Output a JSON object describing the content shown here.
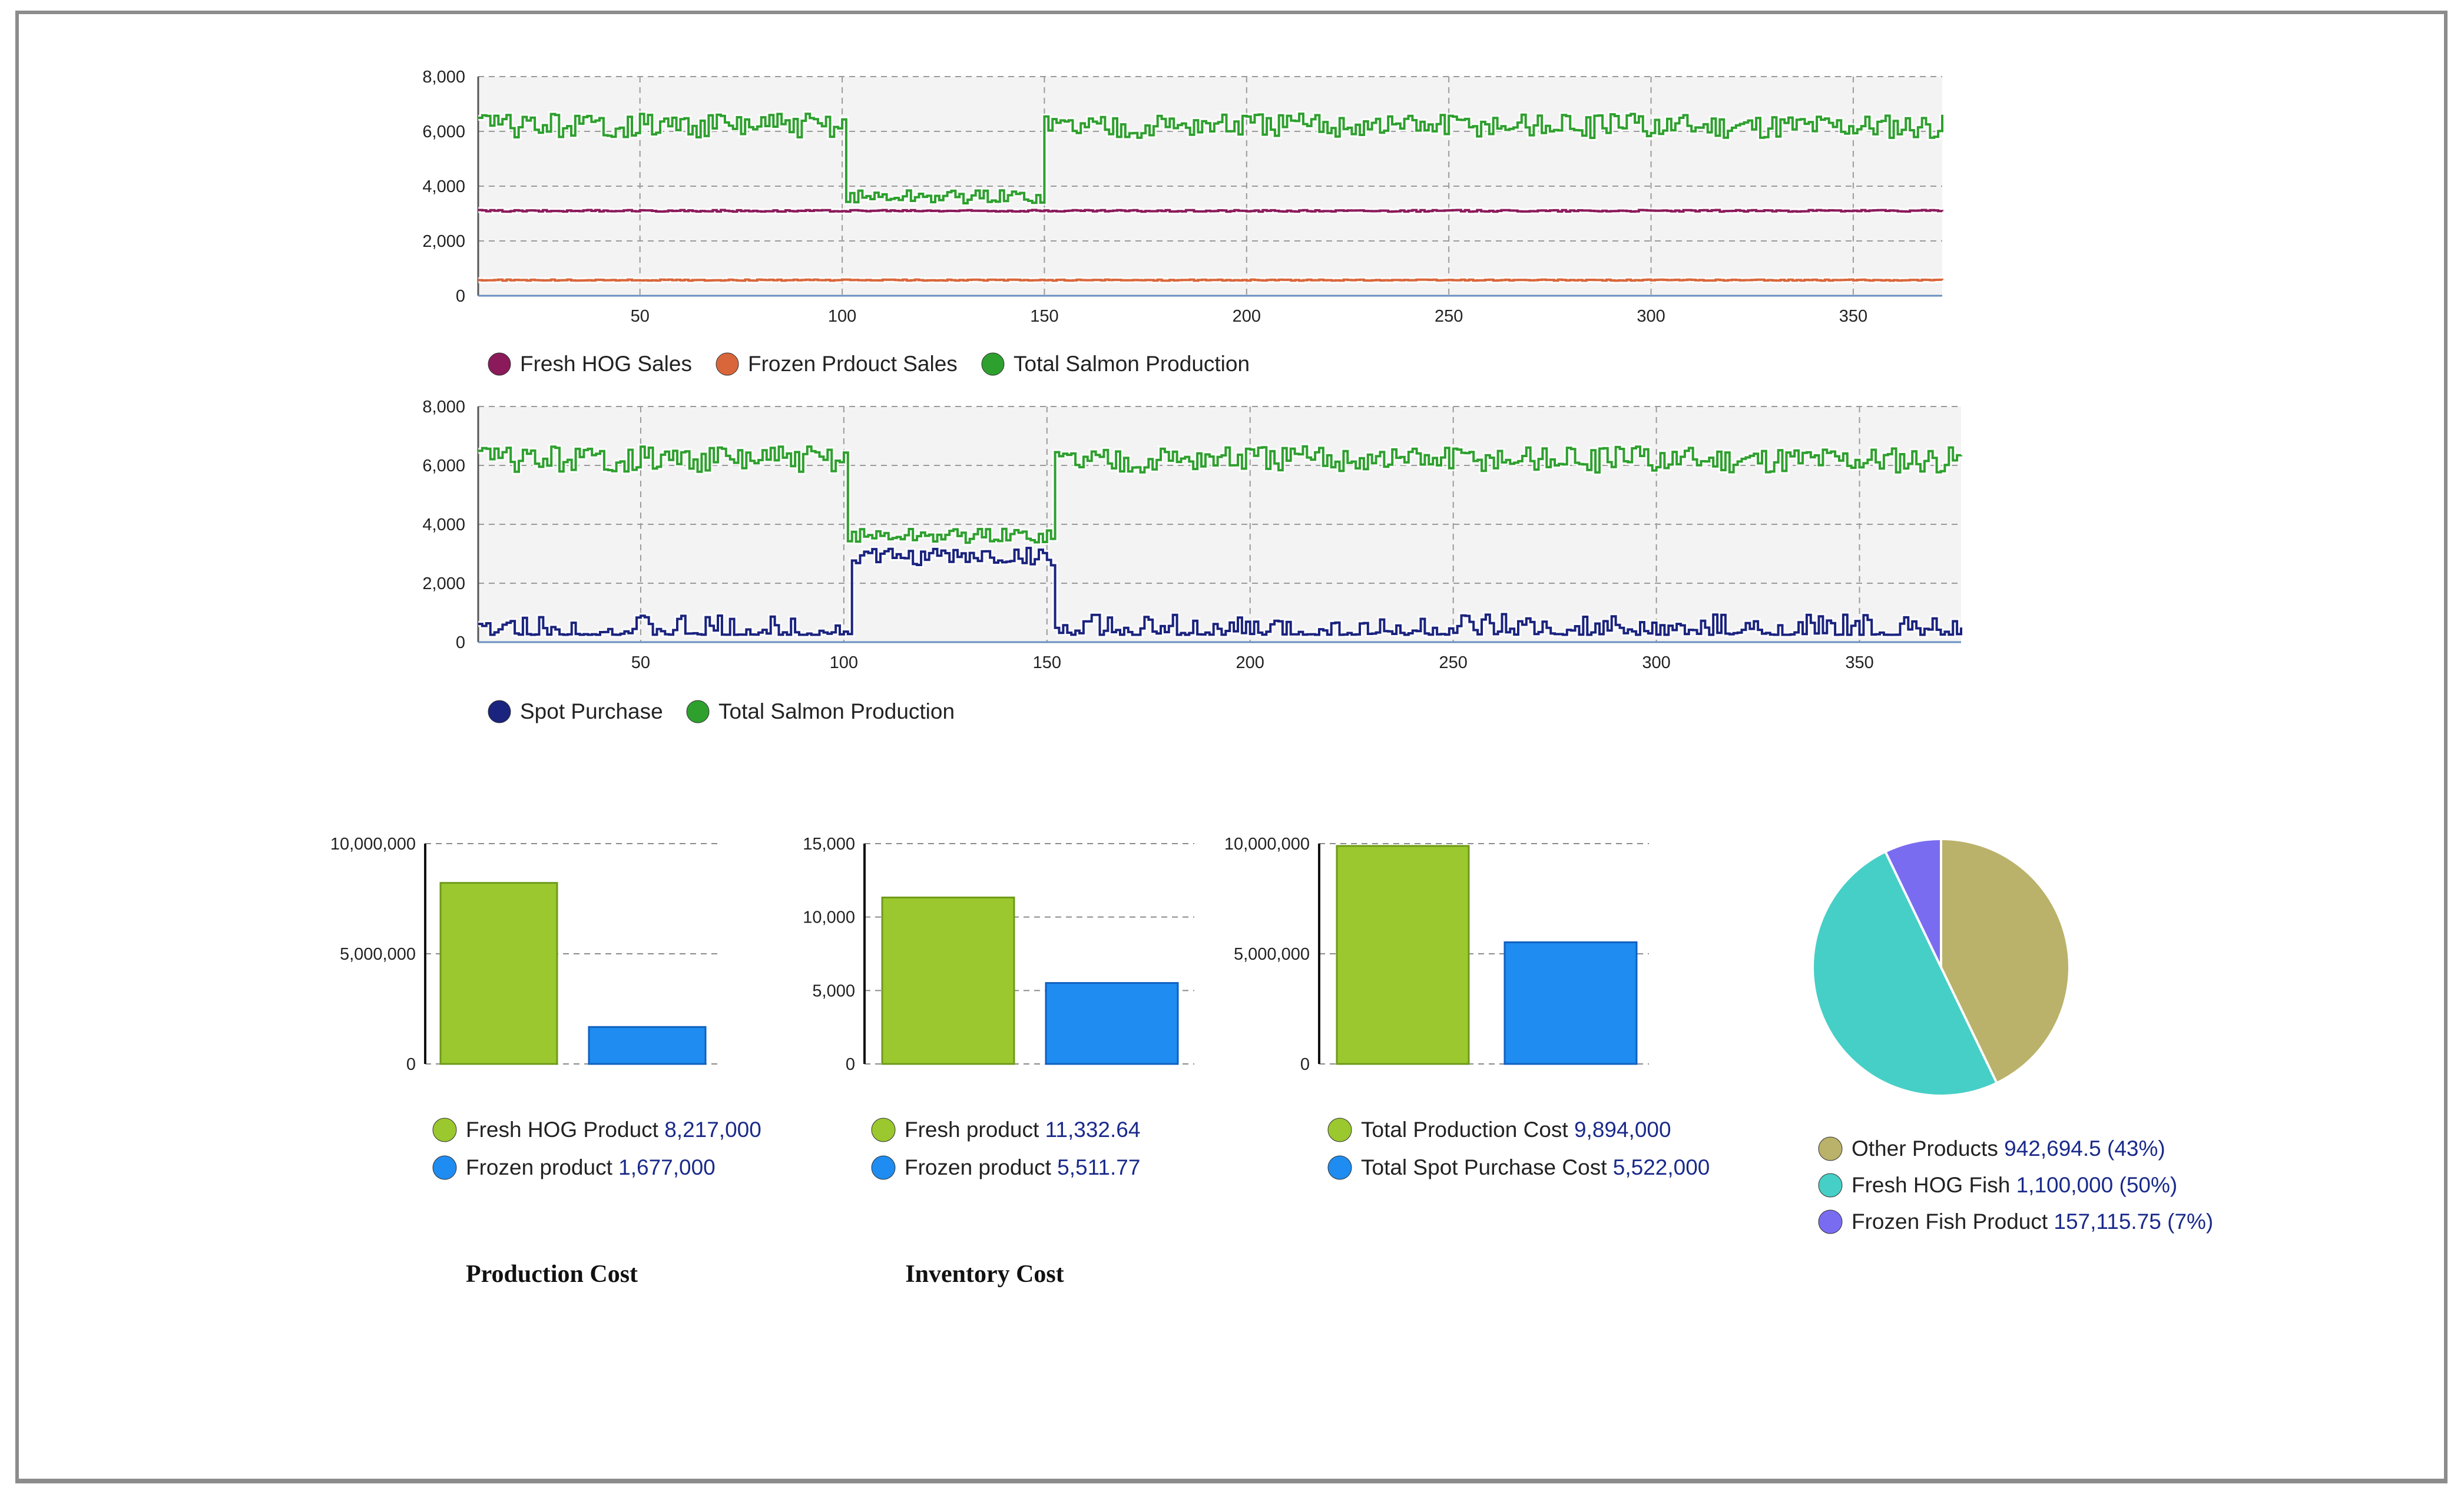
{
  "chart_data": [
    {
      "id": "line1",
      "type": "line",
      "x_range": [
        10,
        372
      ],
      "ylim": [
        0,
        8000
      ],
      "x_ticks": [
        50,
        100,
        150,
        200,
        250,
        300,
        350
      ],
      "y_ticks": [
        0,
        2000,
        4000,
        6000,
        8000
      ],
      "x_tick_labels": [
        "50",
        "100",
        "150",
        "200",
        "250",
        "300",
        "350"
      ],
      "y_tick_labels": [
        "0",
        "2,000",
        "4,000",
        "6,000",
        "8,000"
      ],
      "series": [
        {
          "name": "Fresh HOG Sales",
          "color": "#8b1a5a",
          "pattern": "flat",
          "base": 3100,
          "amp": 30
        },
        {
          "name": "Frozen Prdouct Sales",
          "color": "#d9663a",
          "pattern": "flat",
          "base": 570,
          "amp": 20
        },
        {
          "name": "Total Salmon Production",
          "color": "#2ea02e",
          "pattern": "production",
          "base": 6200,
          "dip_from": 101,
          "dip_to": 150,
          "dip_level": 3600
        }
      ]
    },
    {
      "id": "line2",
      "type": "line",
      "x_range": [
        10,
        375
      ],
      "ylim": [
        0,
        8000
      ],
      "x_ticks": [
        50,
        100,
        150,
        200,
        250,
        300,
        350
      ],
      "y_ticks": [
        0,
        2000,
        4000,
        6000,
        8000
      ],
      "x_tick_labels": [
        "50",
        "100",
        "150",
        "200",
        "250",
        "300",
        "350"
      ],
      "y_tick_labels": [
        "0",
        "2,000",
        "4,000",
        "6,000",
        "8,000"
      ],
      "series": [
        {
          "name": "Spot Purchase",
          "color": "#1a237e",
          "pattern": "spot",
          "base": 250,
          "dip_from": 102,
          "dip_to": 152,
          "dip_level": 2900
        },
        {
          "name": "Total Salmon Production",
          "color": "#2ea02e",
          "pattern": "production",
          "base": 6200,
          "dip_from": 101,
          "dip_to": 152,
          "dip_level": 3600
        }
      ]
    },
    {
      "id": "bar1",
      "type": "bar",
      "title": "Production Cost",
      "ylim": [
        0,
        10000000
      ],
      "y_ticks": [
        0,
        5000000,
        10000000
      ],
      "y_tick_labels": [
        "0",
        "5,000,000",
        "10,000,000"
      ],
      "categories": [
        "Fresh HOG Product",
        "Frozen product"
      ],
      "values": [
        8217000,
        1677000
      ],
      "value_labels": [
        "8,217,000",
        "1,677,000"
      ],
      "colors": [
        "#9ac82e",
        "#1e8cf0"
      ]
    },
    {
      "id": "bar2",
      "type": "bar",
      "title": "Inventory Cost",
      "ylim": [
        0,
        15000
      ],
      "y_ticks": [
        0,
        5000,
        10000,
        15000
      ],
      "y_tick_labels": [
        "0",
        "5,000",
        "10,000",
        "15,000"
      ],
      "categories": [
        "Fresh product",
        "Frozen product"
      ],
      "values": [
        11332.64,
        5511.77
      ],
      "value_labels": [
        "11,332.64",
        "5,511.77"
      ],
      "colors": [
        "#9ac82e",
        "#1e8cf0"
      ]
    },
    {
      "id": "bar3",
      "type": "bar",
      "title": "",
      "ylim": [
        0,
        10000000
      ],
      "y_ticks": [
        0,
        5000000,
        10000000
      ],
      "y_tick_labels": [
        "0",
        "5,000,000",
        "10,000,000"
      ],
      "categories": [
        "Total Production Cost",
        "Total Spot Purchase Cost"
      ],
      "values": [
        9894000,
        5522000
      ],
      "value_labels": [
        "9,894,000",
        "5,522,000"
      ],
      "colors": [
        "#9ac82e",
        "#1e8cf0"
      ]
    },
    {
      "id": "pie1",
      "type": "pie",
      "categories": [
        "Other Products",
        "Fresh HOG Fish",
        "Frozen Fish Product"
      ],
      "values": [
        942694.5,
        1100000,
        157115.75
      ],
      "percent": [
        43,
        50,
        7
      ],
      "value_labels": [
        "942,694.5 (43%)",
        "1,100,000 (50%)",
        "157,115.75 (7%)"
      ],
      "colors": [
        "#bab26a",
        "#46cfc6",
        "#7a6cf0"
      ]
    }
  ]
}
